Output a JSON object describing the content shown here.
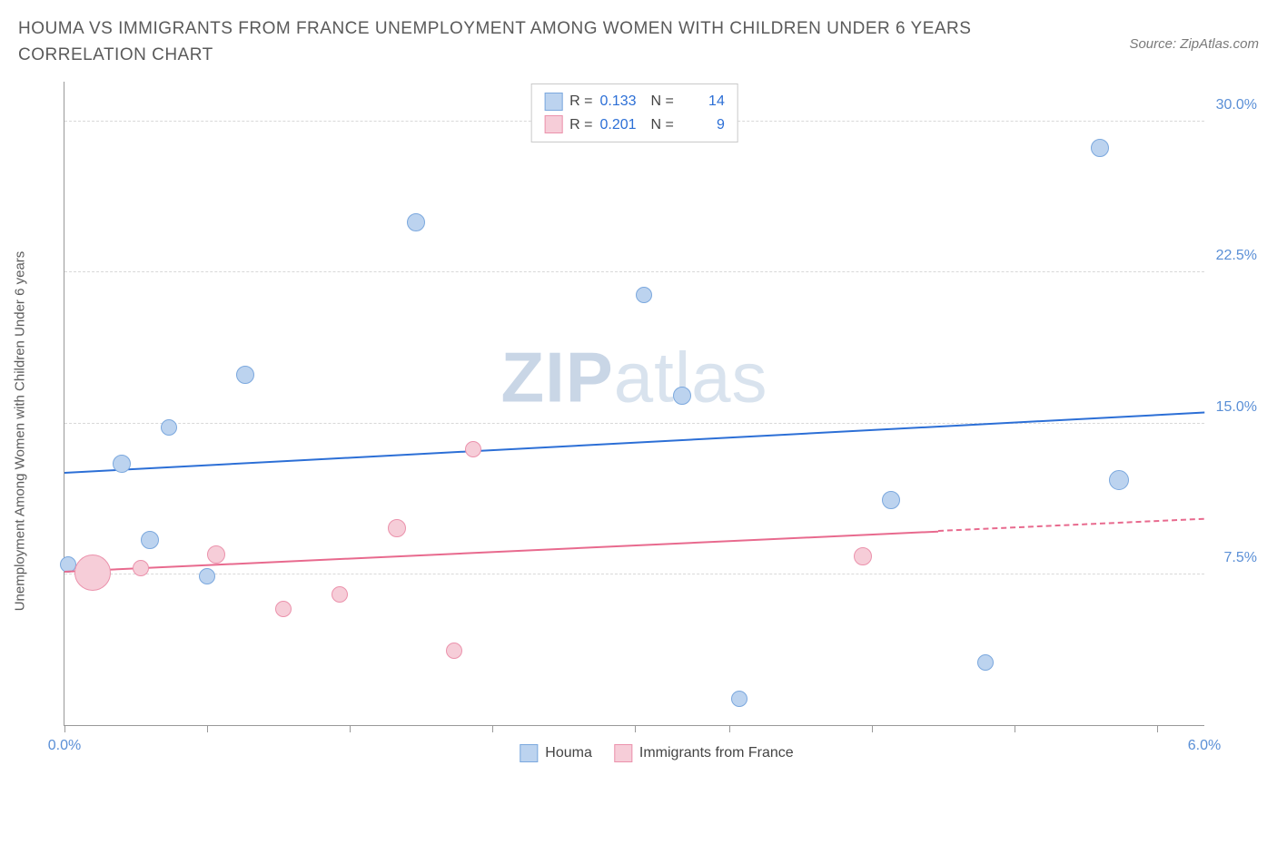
{
  "title": "HOUMA VS IMMIGRANTS FROM FRANCE UNEMPLOYMENT AMONG WOMEN WITH CHILDREN UNDER 6 YEARS CORRELATION CHART",
  "source": "Source: ZipAtlas.com",
  "ylabel": "Unemployment Among Women with Children Under 6 years",
  "watermark_a": "ZIP",
  "watermark_b": "atlas",
  "chart": {
    "type": "scatter",
    "xlim": [
      0.0,
      6.0
    ],
    "ylim": [
      0.0,
      32.0
    ],
    "xtick_positions": [
      0.0,
      0.75,
      1.5,
      2.25,
      3.0,
      3.5,
      4.25,
      5.0,
      5.75
    ],
    "xtick_labels": {
      "0.0": "0.0%",
      "6.0": "6.0%"
    },
    "ytick_positions": [
      7.5,
      15.0,
      22.5,
      30.0
    ],
    "ytick_labels": [
      "7.5%",
      "15.0%",
      "22.5%",
      "30.0%"
    ],
    "grid_color": "#d8d8d8",
    "axis_color": "#999999",
    "background_color": "#ffffff",
    "series": [
      {
        "name": "Houma",
        "color_fill": "#bcd3ef",
        "color_stroke": "#7ba8de",
        "trend_color": "#2c6fd6",
        "R": 0.133,
        "N": 14,
        "marker_radius_default": 9,
        "points": [
          {
            "x": 0.02,
            "y": 8.0,
            "r": 9
          },
          {
            "x": 0.3,
            "y": 13.0,
            "r": 10
          },
          {
            "x": 0.45,
            "y": 9.2,
            "r": 10
          },
          {
            "x": 0.55,
            "y": 14.8,
            "r": 9
          },
          {
            "x": 0.75,
            "y": 7.4,
            "r": 9
          },
          {
            "x": 0.95,
            "y": 17.4,
            "r": 10
          },
          {
            "x": 1.85,
            "y": 25.0,
            "r": 10
          },
          {
            "x": 3.05,
            "y": 21.4,
            "r": 9
          },
          {
            "x": 3.25,
            "y": 16.4,
            "r": 10
          },
          {
            "x": 3.55,
            "y": 1.3,
            "r": 9
          },
          {
            "x": 4.35,
            "y": 11.2,
            "r": 10
          },
          {
            "x": 4.85,
            "y": 3.1,
            "r": 9
          },
          {
            "x": 5.45,
            "y": 28.7,
            "r": 10
          },
          {
            "x": 5.55,
            "y": 12.2,
            "r": 11
          }
        ],
        "trend": {
          "x1": 0.0,
          "y1": 12.5,
          "x2": 6.0,
          "y2": 15.5
        }
      },
      {
        "name": "Immigrants from France",
        "color_fill": "#f6cdd8",
        "color_stroke": "#eb92ac",
        "trend_color": "#e86a8e",
        "R": 0.201,
        "N": 9,
        "marker_radius_default": 9,
        "points": [
          {
            "x": 0.15,
            "y": 7.6,
            "r": 20
          },
          {
            "x": 0.4,
            "y": 7.8,
            "r": 9
          },
          {
            "x": 0.8,
            "y": 8.5,
            "r": 10
          },
          {
            "x": 1.15,
            "y": 5.8,
            "r": 9
          },
          {
            "x": 1.45,
            "y": 6.5,
            "r": 9
          },
          {
            "x": 1.75,
            "y": 9.8,
            "r": 10
          },
          {
            "x": 2.05,
            "y": 3.7,
            "r": 9
          },
          {
            "x": 2.15,
            "y": 13.7,
            "r": 9
          },
          {
            "x": 4.2,
            "y": 8.4,
            "r": 10
          }
        ],
        "trend": {
          "x1": 0.0,
          "y1": 7.6,
          "x2": 4.6,
          "y2": 9.6
        },
        "trend_extend": {
          "x1": 4.6,
          "y1": 9.6,
          "x2": 6.0,
          "y2": 10.2
        }
      }
    ]
  },
  "legend_top": [
    {
      "swatch_fill": "#bcd3ef",
      "swatch_stroke": "#7ba8de",
      "r_label": "R =",
      "r_val": "0.133",
      "n_label": "N =",
      "n_val": "14"
    },
    {
      "swatch_fill": "#f6cdd8",
      "swatch_stroke": "#eb92ac",
      "r_label": "R =",
      "r_val": "0.201",
      "n_label": "N =",
      "n_val": " 9"
    }
  ],
  "legend_bottom": [
    {
      "swatch_fill": "#bcd3ef",
      "swatch_stroke": "#7ba8de",
      "label": "Houma"
    },
    {
      "swatch_fill": "#f6cdd8",
      "swatch_stroke": "#eb92ac",
      "label": "Immigrants from France"
    }
  ]
}
